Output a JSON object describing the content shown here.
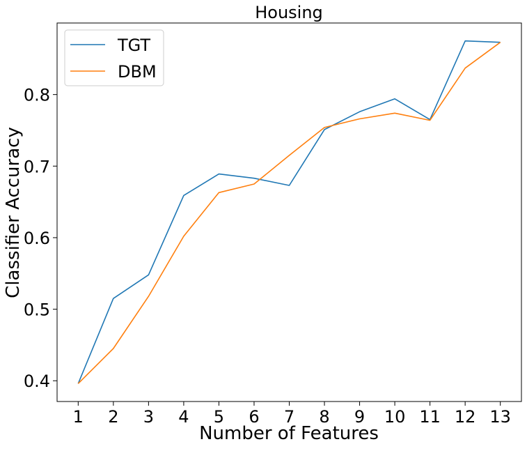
{
  "chart_data": {
    "type": "line",
    "title": "Housing",
    "xlabel": "Number of Features",
    "ylabel": "Classifier Accuracy",
    "x": [
      1,
      2,
      3,
      4,
      5,
      6,
      7,
      8,
      9,
      10,
      11,
      12,
      13
    ],
    "x_ticks": [
      "1",
      "2",
      "3",
      "4",
      "5",
      "6",
      "7",
      "8",
      "9",
      "10",
      "11",
      "12",
      "13"
    ],
    "y_ticks": [
      "0.4",
      "0.5",
      "0.6",
      "0.7",
      "0.8"
    ],
    "y_tick_values": [
      0.4,
      0.5,
      0.6,
      0.7,
      0.8
    ],
    "xlim": [
      0.4,
      13.6
    ],
    "ylim": [
      0.371,
      0.9
    ],
    "grid": false,
    "legend_position": "top-left",
    "series": [
      {
        "name": "TGT",
        "color": "#1f77b4",
        "values": [
          0.396,
          0.515,
          0.548,
          0.659,
          0.689,
          0.683,
          0.673,
          0.751,
          0.776,
          0.794,
          0.765,
          0.875,
          0.873
        ]
      },
      {
        "name": "DBM",
        "color": "#ff7f0e",
        "values": [
          0.396,
          0.445,
          0.518,
          0.602,
          0.663,
          0.675,
          0.715,
          0.754,
          0.766,
          0.774,
          0.764,
          0.837,
          0.873
        ]
      }
    ]
  }
}
